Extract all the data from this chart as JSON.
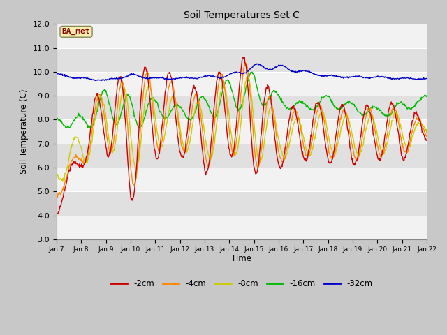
{
  "title": "Soil Temperatures Set C",
  "xlabel": "Time",
  "ylabel": "Soil Temperature (C)",
  "ylim": [
    3.0,
    12.0
  ],
  "yticks": [
    3.0,
    4.0,
    5.0,
    6.0,
    7.0,
    8.0,
    9.0,
    10.0,
    11.0,
    12.0
  ],
  "xtick_labels": [
    "Jan 7",
    "Jan 8",
    "Jan 9",
    "Jan 10",
    "Jan 11",
    "Jan 12",
    "Jan 13",
    "Jan 14",
    "Jan 15",
    "Jan 16",
    "Jan 17",
    "Jan 18",
    "Jan 19",
    "Jan 20",
    "Jan 21",
    "Jan 22"
  ],
  "series_colors": {
    "-2cm": "#cc0000",
    "-4cm": "#ff8800",
    "-8cm": "#cccc00",
    "-16cm": "#00bb00",
    "-32cm": "#0000cc"
  },
  "legend_label": "BA_met",
  "linewidth": 1.0,
  "n_days": 15,
  "pts_per_day": 48
}
